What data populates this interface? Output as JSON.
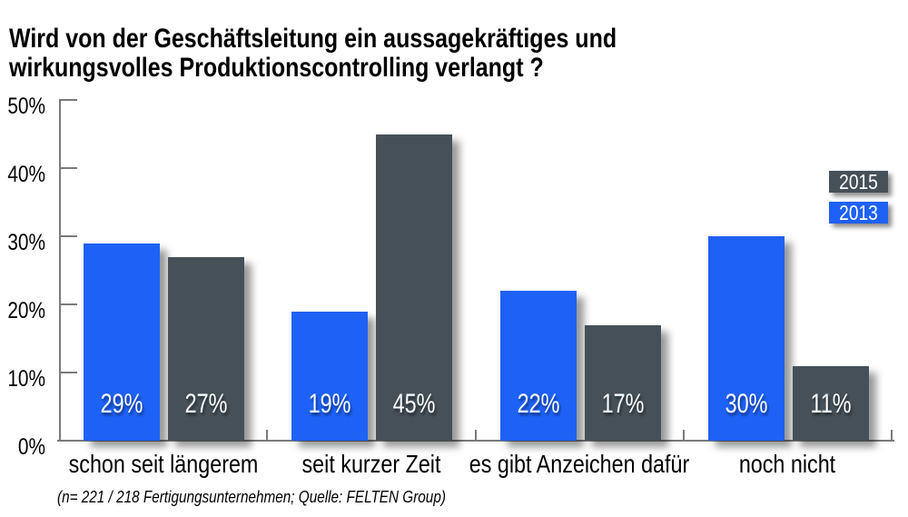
{
  "title": {
    "line1": "Wird von der Geschäftsleitung ein aussagekräftiges und",
    "line2": "wirkungsvolles Produktionscontrolling verlangt ?"
  },
  "footnote": "(n= 221 / 218 Fertigungsunternehmen; Quelle: FELTEN Group)",
  "chart_data": {
    "type": "bar",
    "title": "Wird von der Geschäftsleitung ein aussagekräftiges und wirkungsvolles Produktionscontrolling verlangt ?",
    "categories": [
      "schon seit längerem",
      "seit kurzer Zeit",
      "es gibt Anzeichen dafür",
      "noch nicht"
    ],
    "series": [
      {
        "name": "2013",
        "color": "#1e61f5",
        "values": [
          29,
          19,
          22,
          30
        ]
      },
      {
        "name": "2015",
        "color": "#455059",
        "values": [
          27,
          45,
          17,
          11
        ]
      }
    ],
    "value_suffix": "%",
    "ylabel": "",
    "xlabel": "",
    "ylim": [
      0,
      50
    ],
    "yticks": [
      "0%",
      "10%",
      "20%",
      "30%",
      "40%",
      "50%"
    ],
    "grid": false,
    "legend": {
      "entries": [
        {
          "label": "2015",
          "color": "#455059"
        },
        {
          "label": "2013",
          "color": "#1e61f5"
        }
      ],
      "position": "right"
    }
  }
}
